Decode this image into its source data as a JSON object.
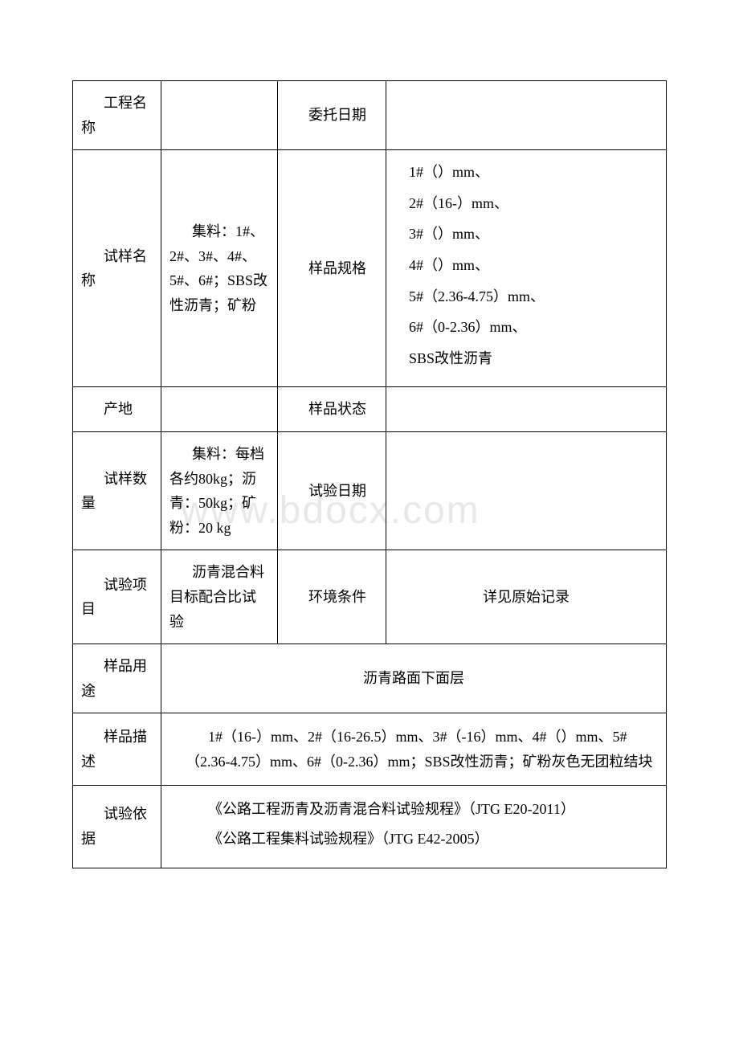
{
  "watermark": "www.bdocx.com",
  "rows": {
    "project": {
      "label": "工程名称",
      "value": "",
      "label2": "委托日期",
      "value2": ""
    },
    "sample_name": {
      "label": "试样名称",
      "value": "集料：1#、2#、3#、4#、5#、6#；SBS改性沥青；矿粉",
      "value_prefix": "集料：",
      "label2": "样品规格",
      "specs": [
        "1#（）mm、",
        "2#（16-）mm、",
        "3#（）mm、",
        "4#（）mm、",
        "5#（2.36-4.75）mm、",
        "6#（0-2.36）mm、",
        "SBS改性沥青"
      ]
    },
    "origin": {
      "label": "产地",
      "value": "",
      "label2": "样品状态",
      "value2": ""
    },
    "quantity": {
      "label": "试样数量",
      "value": "集料：每档各约80kg；沥青：50kg；矿粉：20 kg",
      "value_prefix": "集料：",
      "label2": "试验日期",
      "value2": ""
    },
    "test_item": {
      "label": "试验项目",
      "value": "沥青混合料目标配合比试验",
      "value_prefix": "沥青混",
      "label2": "环境条件",
      "value2": "详见原始记录"
    },
    "usage": {
      "label": "样品用途",
      "value": "沥青路面下面层"
    },
    "description": {
      "label": "样品描述",
      "value": "1#（16-）mm、2#（16-26.5）mm、3#（-16）mm、4#（）mm、5#（2.36-4.75）mm、6#（0-2.36）mm；SBS改性沥青；矿粉灰色无团粒结块"
    },
    "basis": {
      "label": "试验依据",
      "line1": "《公路工程沥青及沥青混合料试验规程》（JTG E20-2011）",
      "line2": "《公路工程集料试验规程》（JTG E42-2005）"
    }
  },
  "styling": {
    "font_family": "SimSun",
    "font_size_pt": 14,
    "border_color": "#000000",
    "text_color": "#000000",
    "background_color": "#ffffff",
    "watermark_color": "#e8e8e8",
    "line_height": 1.7,
    "cell_padding": 12
  }
}
